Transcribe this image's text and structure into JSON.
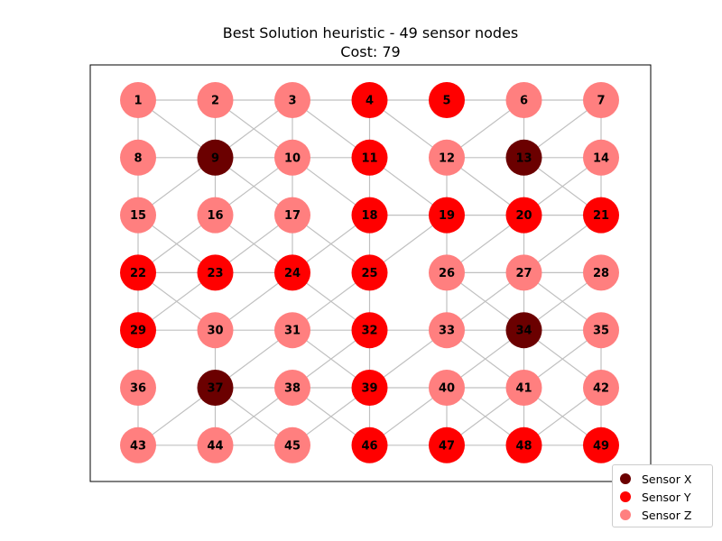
{
  "title": "Best Solution heuristic - 49 sensor nodes",
  "subtitle": "Cost: 79",
  "colors": {
    "sensor_x": "#6b0000",
    "sensor_y": "#ff0000",
    "sensor_z": "#ff7f7f",
    "edge": "#c0c0c0",
    "frame": "#000000"
  },
  "legend": [
    {
      "label": "Sensor X",
      "type": "X"
    },
    {
      "label": "Sensor Y",
      "type": "Y"
    },
    {
      "label": "Sensor Z",
      "type": "Z"
    }
  ],
  "grid": {
    "rows": 7,
    "cols": 7
  },
  "nodes": [
    {
      "id": 1,
      "type": "Z"
    },
    {
      "id": 2,
      "type": "Z"
    },
    {
      "id": 3,
      "type": "Z"
    },
    {
      "id": 4,
      "type": "Y"
    },
    {
      "id": 5,
      "type": "Y"
    },
    {
      "id": 6,
      "type": "Z"
    },
    {
      "id": 7,
      "type": "Z"
    },
    {
      "id": 8,
      "type": "Z"
    },
    {
      "id": 9,
      "type": "X"
    },
    {
      "id": 10,
      "type": "Z"
    },
    {
      "id": 11,
      "type": "Y"
    },
    {
      "id": 12,
      "type": "Z"
    },
    {
      "id": 13,
      "type": "X"
    },
    {
      "id": 14,
      "type": "Z"
    },
    {
      "id": 15,
      "type": "Z"
    },
    {
      "id": 16,
      "type": "Z"
    },
    {
      "id": 17,
      "type": "Z"
    },
    {
      "id": 18,
      "type": "Y"
    },
    {
      "id": 19,
      "type": "Y"
    },
    {
      "id": 20,
      "type": "Y"
    },
    {
      "id": 21,
      "type": "Y"
    },
    {
      "id": 22,
      "type": "Y"
    },
    {
      "id": 23,
      "type": "Y"
    },
    {
      "id": 24,
      "type": "Y"
    },
    {
      "id": 25,
      "type": "Y"
    },
    {
      "id": 26,
      "type": "Z"
    },
    {
      "id": 27,
      "type": "Z"
    },
    {
      "id": 28,
      "type": "Z"
    },
    {
      "id": 29,
      "type": "Y"
    },
    {
      "id": 30,
      "type": "Z"
    },
    {
      "id": 31,
      "type": "Z"
    },
    {
      "id": 32,
      "type": "Y"
    },
    {
      "id": 33,
      "type": "Z"
    },
    {
      "id": 34,
      "type": "X"
    },
    {
      "id": 35,
      "type": "Z"
    },
    {
      "id": 36,
      "type": "Z"
    },
    {
      "id": 37,
      "type": "X"
    },
    {
      "id": 38,
      "type": "Z"
    },
    {
      "id": 39,
      "type": "Y"
    },
    {
      "id": 40,
      "type": "Z"
    },
    {
      "id": 41,
      "type": "Z"
    },
    {
      "id": 42,
      "type": "Z"
    },
    {
      "id": 43,
      "type": "Z"
    },
    {
      "id": 44,
      "type": "Z"
    },
    {
      "id": 45,
      "type": "Z"
    },
    {
      "id": 46,
      "type": "Y"
    },
    {
      "id": 47,
      "type": "Y"
    },
    {
      "id": 48,
      "type": "Y"
    },
    {
      "id": 49,
      "type": "Y"
    }
  ],
  "edges": [
    [
      1,
      2
    ],
    [
      2,
      3
    ],
    [
      3,
      4
    ],
    [
      4,
      5
    ],
    [
      5,
      6
    ],
    [
      6,
      7
    ],
    [
      8,
      9
    ],
    [
      9,
      10
    ],
    [
      10,
      11
    ],
    [
      12,
      13
    ],
    [
      13,
      14
    ],
    [
      18,
      19
    ],
    [
      19,
      20
    ],
    [
      20,
      21
    ],
    [
      22,
      23
    ],
    [
      23,
      24
    ],
    [
      26,
      27
    ],
    [
      27,
      28
    ],
    [
      29,
      30
    ],
    [
      30,
      31
    ],
    [
      31,
      32
    ],
    [
      32,
      33
    ],
    [
      33,
      34
    ],
    [
      34,
      35
    ],
    [
      37,
      38
    ],
    [
      38,
      39
    ],
    [
      39,
      40
    ],
    [
      40,
      41
    ],
    [
      43,
      44
    ],
    [
      44,
      45
    ],
    [
      46,
      47
    ],
    [
      47,
      48
    ],
    [
      48,
      49
    ],
    [
      1,
      8
    ],
    [
      8,
      15
    ],
    [
      15,
      22
    ],
    [
      22,
      29
    ],
    [
      29,
      36
    ],
    [
      36,
      43
    ],
    [
      2,
      9
    ],
    [
      9,
      16
    ],
    [
      3,
      10
    ],
    [
      10,
      17
    ],
    [
      17,
      24
    ],
    [
      4,
      11
    ],
    [
      11,
      18
    ],
    [
      18,
      25
    ],
    [
      25,
      32
    ],
    [
      32,
      39
    ],
    [
      39,
      46
    ],
    [
      6,
      13
    ],
    [
      13,
      20
    ],
    [
      20,
      27
    ],
    [
      27,
      34
    ],
    [
      34,
      41
    ],
    [
      41,
      48
    ],
    [
      19,
      26
    ],
    [
      26,
      33
    ],
    [
      7,
      14
    ],
    [
      14,
      21
    ],
    [
      35,
      42
    ],
    [
      42,
      49
    ],
    [
      30,
      37
    ],
    [
      37,
      44
    ],
    [
      40,
      47
    ],
    [
      1,
      9
    ],
    [
      2,
      10
    ],
    [
      3,
      11
    ],
    [
      4,
      12
    ],
    [
      12,
      20
    ],
    [
      10,
      18
    ],
    [
      11,
      19
    ],
    [
      12,
      19
    ],
    [
      9,
      17
    ],
    [
      16,
      24
    ],
    [
      17,
      25
    ],
    [
      13,
      21
    ],
    [
      13,
      7
    ],
    [
      14,
      20
    ],
    [
      21,
      27
    ],
    [
      20,
      26
    ],
    [
      9,
      15
    ],
    [
      10,
      16
    ],
    [
      3,
      9
    ],
    [
      6,
      12
    ],
    [
      18,
      24
    ],
    [
      19,
      25
    ],
    [
      28,
      34
    ],
    [
      27,
      33
    ],
    [
      15,
      23
    ],
    [
      16,
      22
    ],
    [
      17,
      23
    ],
    [
      22,
      30
    ],
    [
      23,
      29
    ],
    [
      24,
      32
    ],
    [
      25,
      31
    ],
    [
      24,
      30
    ],
    [
      31,
      37
    ],
    [
      31,
      39
    ],
    [
      32,
      38
    ],
    [
      33,
      39
    ],
    [
      33,
      41
    ],
    [
      34,
      40
    ],
    [
      34,
      42
    ],
    [
      35,
      41
    ],
    [
      37,
      43
    ],
    [
      37,
      45
    ],
    [
      38,
      46
    ],
    [
      38,
      44
    ],
    [
      39,
      45
    ],
    [
      40,
      46
    ],
    [
      40,
      48
    ],
    [
      41,
      47
    ],
    [
      41,
      49
    ],
    [
      42,
      48
    ],
    [
      26,
      34
    ],
    [
      27,
      35
    ]
  ]
}
